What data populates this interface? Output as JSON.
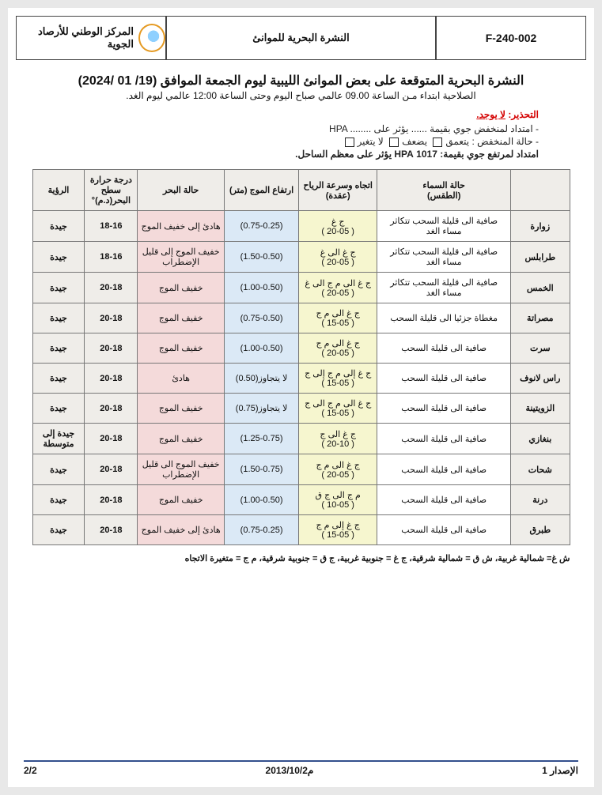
{
  "doc": {
    "org": "المركز الوطني للأرصاد الجوية",
    "mid_title": "النشرة البحرية للموانئ",
    "form_code": "F-240-002",
    "title": "النشرة البحرية المتوقعة على بعض الموانئ الليبية ليوم الجمعة الموافق (19/ 01 /2024)",
    "subtitle": "الصلاحية ابتداء مـن الساعة 09.00 عالمي صباح اليوم وحتى الساعة 12:00 عالمي ليوم الغد.",
    "warning_label": "التحذير:",
    "warning_value": "لا يوجد.",
    "bullets": {
      "line1_a": "- امتداد لمنخفض جوي بقيمة",
      "line1_b": "HPA ........  يؤثر على ......",
      "line2_a": "- حالة المنخفض :",
      "opt1": "يتعمق",
      "opt2": "يضعف",
      "opt3": "لا يتغير",
      "line3": "امتداد لمرتفع جوي بقيمة: 1017 HPA يؤثر على معظم الساحل."
    },
    "legend": "ش غ= شمالية غربية، ش ق = شمالية شرقية، ج غ = جنوبية غربية، ج ق = جنوبية شرقية، م ج = متغيرة الاتجاه",
    "footer_right": "الإصدار 1",
    "footer_mid": "2013/10/2م",
    "footer_left": "2/2"
  },
  "columns": {
    "port": "",
    "sky": "حالة السماء\n(الطقس)",
    "wind": "اتجاه وسرعة الرياح\n(عقدة)",
    "wave": "ارتفاع الموج (متر)",
    "sea": "حالة البحر",
    "temp": "درجة حرارة سطح\nالبحر(د.م)°",
    "vis": "الرؤية"
  },
  "rows": [
    {
      "port": "زوارة",
      "sky": "صافية الى قليلة السحب تتكاثر مساء الغد",
      "wind": "ج غ\n( 20-05 )",
      "wave": "(0.75-0.25)",
      "sea": "هادئ إلى خفيف الموج",
      "temp": "18-16",
      "vis": "جيدة"
    },
    {
      "port": "طرابلس",
      "sky": "صافية الى قليلة السحب تتكاثر مساء الغد",
      "wind": "ج غ الى غ\n( 20-05 )",
      "wave": "(1.50-0.50)",
      "sea": "خفيف الموج إلى قليل الإضطراب",
      "temp": "18-16",
      "vis": "جيدة"
    },
    {
      "port": "الخمس",
      "sky": "صافية الى قليلة السحب تتكاثر مساء الغد",
      "wind": "ج غ الى م ج الى غ\n( 20-05 )",
      "wave": "(1.00-0.50)",
      "sea": "خفيف الموج",
      "temp": "20-18",
      "vis": "جيدة"
    },
    {
      "port": "مصراتة",
      "sky": "مغطاة جزئيا الى قليلة السحب",
      "wind": "ج غ الى م ج\n( 15-05 )",
      "wave": "(0.75-0.50)",
      "sea": "خفيف الموج",
      "temp": "20-18",
      "vis": "جيدة"
    },
    {
      "port": "سرت",
      "sky": "صافية الى قليلة السحب",
      "wind": "ج غ الى م ج\n( 20-05 )",
      "wave": "(1.00-0.50)",
      "sea": "خفيف الموج",
      "temp": "20-18",
      "vis": "جيدة"
    },
    {
      "port": "راس لانوف",
      "sky": "صافية الى قليلة السحب",
      "wind": "ج غ إلى م ج إلى ج\n( 15-05 )",
      "wave": "لا يتجاوز(0.50)",
      "sea": "هادئ",
      "temp": "20-18",
      "vis": "جيدة"
    },
    {
      "port": "الزويتينة",
      "sky": "صافية الى قليلة السحب",
      "wind": "ج غ الى م ج الى ج\n( 15-05 )",
      "wave": "لا يتجاوز(0.75)",
      "sea": "خفيف الموج",
      "temp": "20-18",
      "vis": "جيدة"
    },
    {
      "port": "بنغازي",
      "sky": "صافية الى قليلة السحب",
      "wind": "ج غ الى ج\n( 20-10 )",
      "wave": "(1.25-0.75)",
      "sea": "خفيف الموج",
      "temp": "20-18",
      "vis": "جيدة إلى متوسطة"
    },
    {
      "port": "شحات",
      "sky": "صافية الى قليلة السحب",
      "wind": "ج غ الى م ج\n( 20-05 )",
      "wave": "(1.50-0.75)",
      "sea": "خفيف الموج الى قليل الإضطراب",
      "temp": "20-18",
      "vis": "جيدة"
    },
    {
      "port": "درنة",
      "sky": "صافية الى قليلة السحب",
      "wind": "م ج الى ج ق\n( 10-05 )",
      "wave": "(1.00-0.50)",
      "sea": "خفيف الموج",
      "temp": "20-18",
      "vis": "جيدة"
    },
    {
      "port": "طبرق",
      "sky": "صافية الى قليلة السحب",
      "wind": "ج غ إلى م ج\n( 15-05 )",
      "wave": "(0.75-0.25)",
      "sea": "هادئ إلى خفيف الموج",
      "temp": "20-18",
      "vis": "جيدة"
    }
  ],
  "style": {
    "header_bg": "#efede9",
    "sky_bg": "#ffffff",
    "wind_bg": "#f6f6cf",
    "wave_bg": "#dbe9f6",
    "sea_bg": "#f4dada",
    "temp_bg": "#efede9",
    "vis_bg": "#efede9",
    "port_bg": "#efede9",
    "border_color": "#777",
    "warning_color": "#d40000",
    "footer_border": "#334f8d",
    "font_size_body": 12,
    "font_size_title": 16,
    "font_size_cell": 11
  }
}
